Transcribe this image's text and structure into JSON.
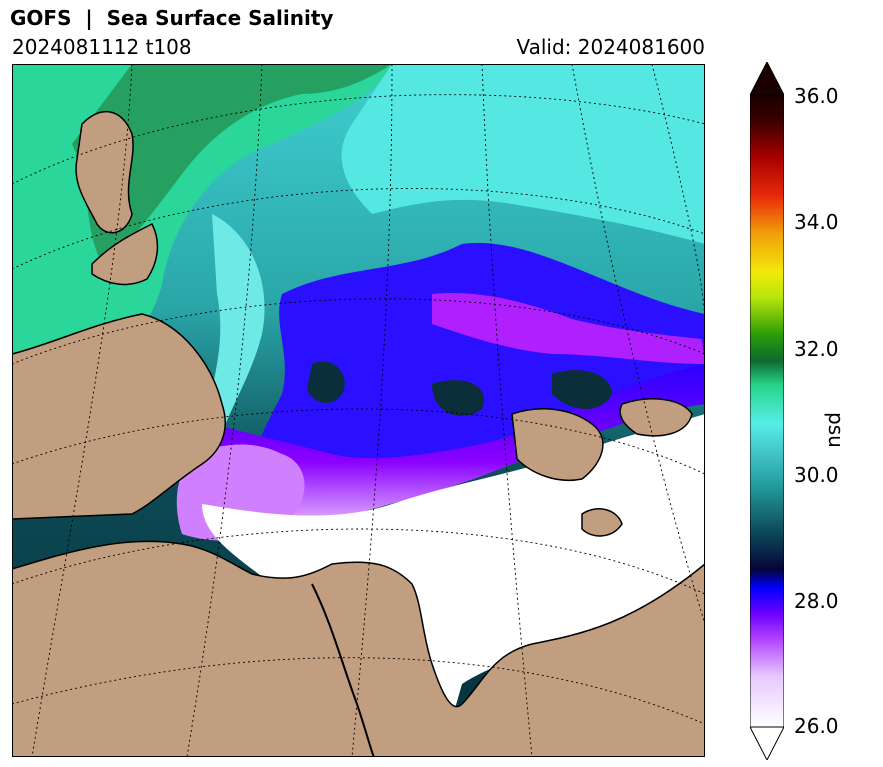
{
  "header": {
    "title": "GOFS  |  Sea Surface Salinity",
    "run": "2024081112 t108",
    "valid": "Valid: 2024081600"
  },
  "colorbar": {
    "label": "psu",
    "ticks": [
      "36.0",
      "34.0",
      "32.0",
      "30.0",
      "28.0",
      "26.0"
    ],
    "range": [
      26.0,
      36.0
    ],
    "extend": "both",
    "colors": {
      "low": "#ffffff",
      "fresh": "#a000ff",
      "blue": "#1500ff",
      "mid": "#0b3a4c",
      "teal": "#2fa3a8",
      "cyan": "#4fe6e0",
      "green": "#2fd68a",
      "darkgreen": "#1a8a2a",
      "yellow": "#e8e80a",
      "orange": "#f08a0a",
      "red": "#d60000",
      "max": "#1a0000"
    }
  },
  "map": {
    "land_color": "#c19e7f",
    "ice_color": "#ffffff",
    "graticule": "dotted"
  }
}
